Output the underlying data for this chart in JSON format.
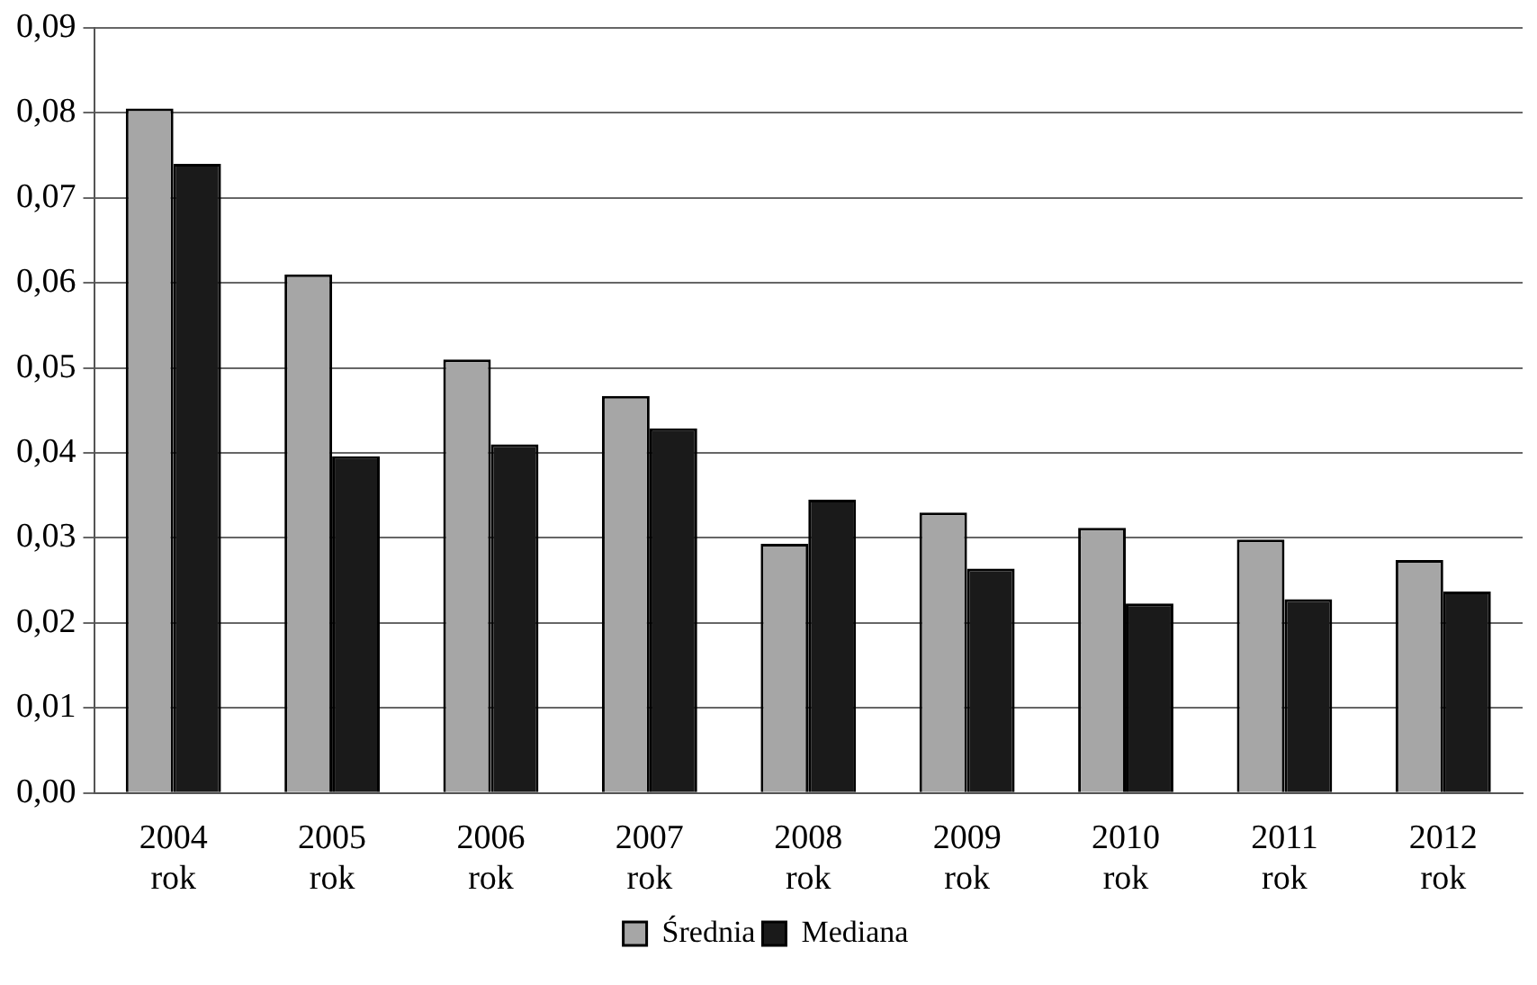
{
  "chart_data": {
    "type": "bar",
    "categories": [
      "2004 rok",
      "2005 rok",
      "2006 rok",
      "2007 rok",
      "2008 rok",
      "2009 rok",
      "2010 rok",
      "2011 rok",
      "2012 rok"
    ],
    "series": [
      {
        "name": "Średnia",
        "color": "#a6a6a6",
        "values": [
          0.0805,
          0.061,
          0.051,
          0.0467,
          0.0293,
          0.033,
          0.0312,
          0.0298,
          0.0274
        ]
      },
      {
        "name": "Mediana",
        "color": "#1a1a1a",
        "values": [
          0.074,
          0.0396,
          0.041,
          0.0429,
          0.0345,
          0.0264,
          0.0223,
          0.0228,
          0.0237
        ]
      }
    ],
    "ylim": [
      0,
      0.09
    ],
    "yticks": [
      {
        "value": 0,
        "label": "0,00"
      },
      {
        "value": 0.01,
        "label": "0,01"
      },
      {
        "value": 0.02,
        "label": "0,02"
      },
      {
        "value": 0.03,
        "label": "0,03"
      },
      {
        "value": 0.04,
        "label": "0,04"
      },
      {
        "value": 0.05,
        "label": "0,05"
      },
      {
        "value": 0.06,
        "label": "0,06"
      },
      {
        "value": 0.07,
        "label": "0,07"
      },
      {
        "value": 0.08,
        "label": "0,08"
      },
      {
        "value": 0.09,
        "label": "0,09"
      }
    ],
    "grid": "y",
    "legend": "bottom"
  }
}
